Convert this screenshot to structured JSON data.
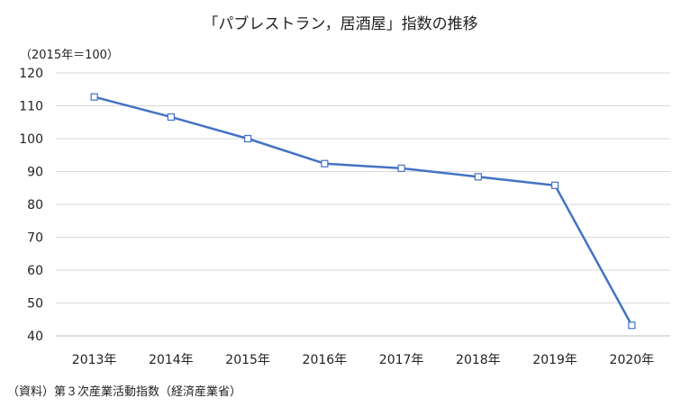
{
  "chart_data": {
    "type": "line",
    "title": "「パブレストラン，居酒屋」指数の推移",
    "unit_label": "（2015年＝100）",
    "source": "（資料）第３次産業活動指数（経済産業省）",
    "categories": [
      "2013年",
      "2014年",
      "2015年",
      "2016年",
      "2017年",
      "2018年",
      "2019年",
      "2020年"
    ],
    "series": [
      {
        "values": [
          112.7,
          106.6,
          100.0,
          92.4,
          91.0,
          88.4,
          85.8,
          43.2
        ]
      }
    ],
    "ylim": [
      40,
      120
    ],
    "yticks": [
      40,
      50,
      60,
      70,
      80,
      90,
      100,
      110,
      120
    ],
    "grid": true,
    "legend": "none",
    "colors": {
      "line": "#4472C4",
      "marker_fill": "#ffffff",
      "grid": "#d9d9d9",
      "axis": "#bfbfbf"
    }
  }
}
